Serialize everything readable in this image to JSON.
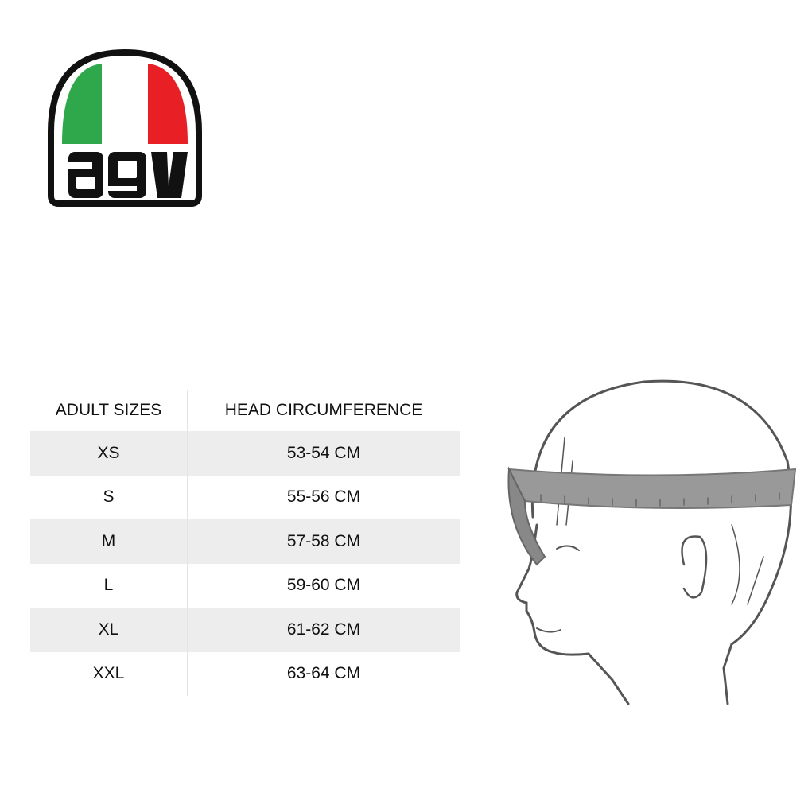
{
  "logo": {
    "text": "agv",
    "colors": {
      "green": "#2ea84a",
      "red": "#e81f25",
      "outline": "#111111"
    }
  },
  "table": {
    "headers": [
      "ADULT SIZES",
      "HEAD CIRCUMFERENCE"
    ],
    "rows": [
      {
        "size": "XS",
        "circumference": "53-54 CM"
      },
      {
        "size": "S",
        "circumference": "55-56 CM"
      },
      {
        "size": "M",
        "circumference": "57-58 CM"
      },
      {
        "size": "L",
        "circumference": "59-60 CM"
      },
      {
        "size": "XL",
        "circumference": "61-62 CM"
      },
      {
        "size": "XXL",
        "circumference": "63-64 CM"
      }
    ],
    "shade_color": "#ededed"
  },
  "illustration": {
    "subject": "head-profile-with-measuring-tape"
  }
}
